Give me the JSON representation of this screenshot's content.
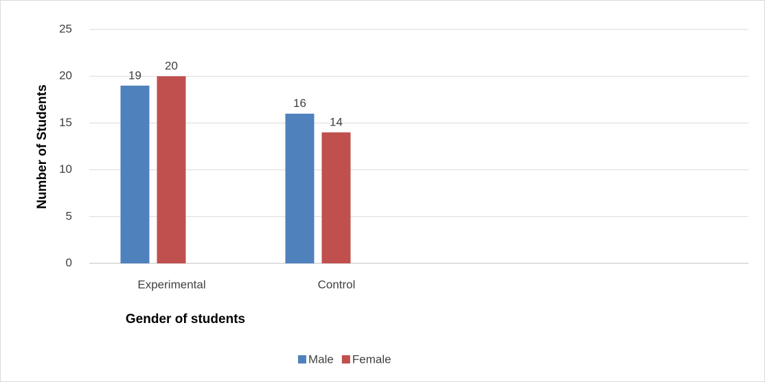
{
  "chart_data": {
    "type": "bar",
    "x_label": "Gender of students",
    "y_label": "Number of Students",
    "categories": [
      "Experimental",
      "Control",
      null,
      null
    ],
    "series": [
      {
        "name": "Male",
        "color": "#4f81bd",
        "values": [
          19,
          16,
          null,
          null
        ]
      },
      {
        "name": "Female",
        "color": "#c0504d",
        "values": [
          20,
          14,
          null,
          null
        ]
      }
    ],
    "ylim": [
      0,
      25
    ],
    "yticks": [
      0,
      5,
      10,
      15,
      20,
      25
    ],
    "grid": true,
    "legend": "bottom"
  }
}
